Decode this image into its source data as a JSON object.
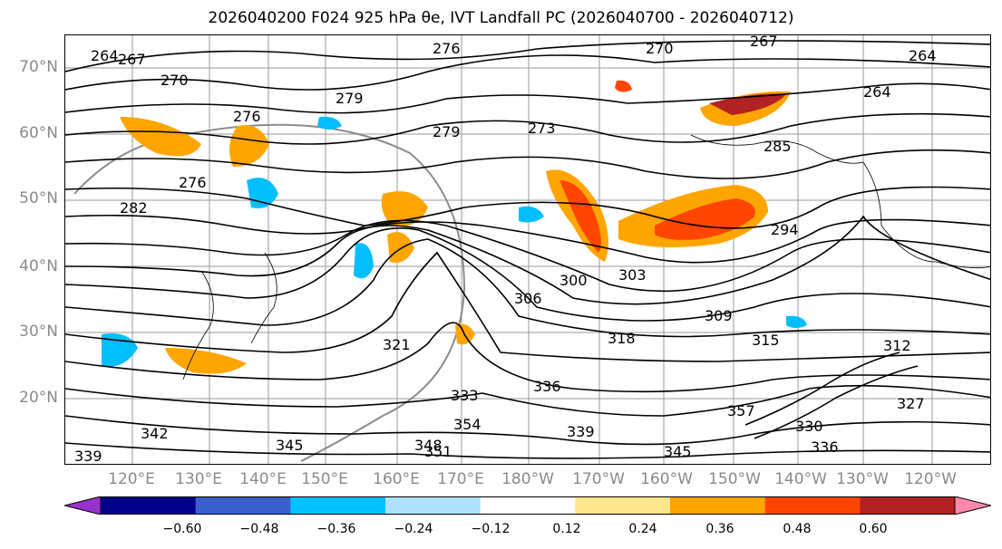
{
  "title": "2026040200 F024 925 hPa θe, IVT Landfall PC (2026040700 - 2026040712)",
  "lat_labels": [
    "70°N",
    "60°N",
    "50°N",
    "40°N",
    "30°N",
    "20°N"
  ],
  "lon_labels": [
    "120°E",
    "130°E",
    "140°E",
    "150°E",
    "160°E",
    "170°E",
    "180°W",
    "170°W",
    "160°W",
    "150°W",
    "140°W",
    "130°W",
    "120°W"
  ],
  "contour_labels": [
    "264",
    "267",
    "270",
    "270",
    "267",
    "264",
    "264",
    "276",
    "276",
    "279",
    "273",
    "279",
    "285",
    "276",
    "282",
    "294",
    "303",
    "300",
    "306",
    "309",
    "315",
    "312",
    "318",
    "321",
    "327",
    "333",
    "336",
    "339",
    "339",
    "342",
    "345",
    "345",
    "348",
    "351",
    "354",
    "357",
    "330",
    "336"
  ],
  "colorbar": {
    "ticks": [
      "−0.60",
      "−0.48",
      "−0.36",
      "−0.24",
      "−0.12",
      "0.12",
      "0.24",
      "0.36",
      "0.48",
      "0.60"
    ],
    "colors": [
      "#9932cc",
      "#00008b",
      "#3a5fcd",
      "#00bfff",
      "#b0e2ff",
      "#ffffff",
      "#ffe68a",
      "#ffa500",
      "#ff4500",
      "#b22222",
      "#ff88aa"
    ]
  }
}
